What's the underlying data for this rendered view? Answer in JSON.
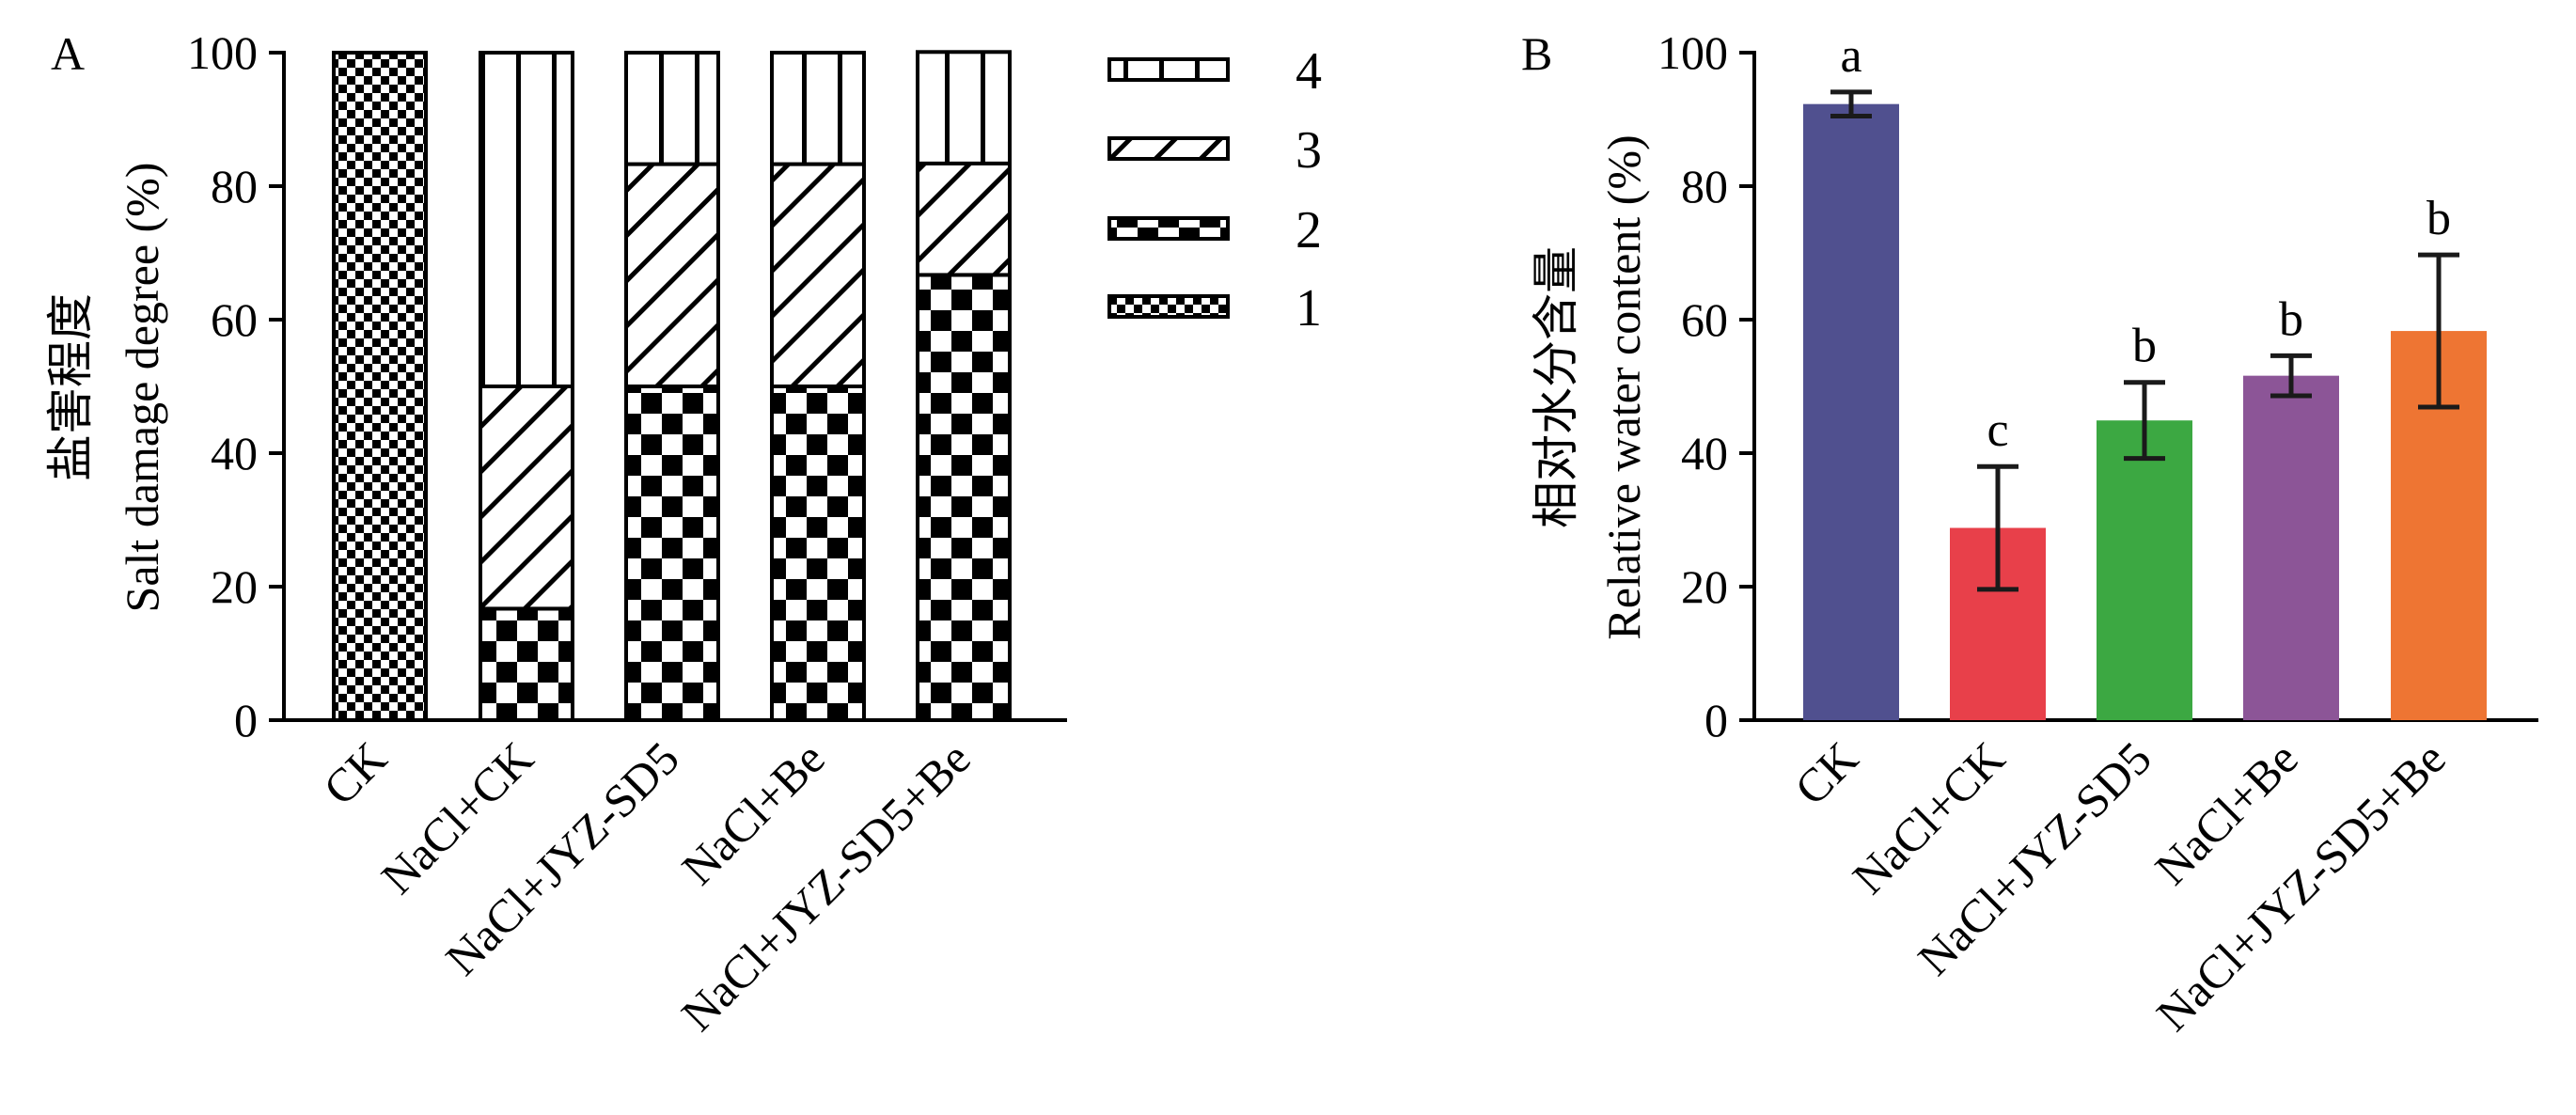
{
  "panels": {
    "a": {
      "letter": "A",
      "ylabel_cn": "盐害程度",
      "ylabel_en": "Salt damage degree (%)"
    },
    "b": {
      "letter": "B",
      "ylabel_cn": "相对水分含量",
      "ylabel_en": "Relative water content (%)"
    }
  },
  "chart_data": [
    {
      "type": "bar",
      "stacked": true,
      "title": "",
      "xlabel": "",
      "ylabel": "盐害程度 Salt damage degree (%)",
      "ylim": [
        0,
        100
      ],
      "yticks": [
        0,
        20,
        40,
        60,
        80,
        100
      ],
      "categories": [
        "CK",
        "NaCl+CK",
        "NaCl+JYZ-SD5",
        "NaCl+Be",
        "NaCl+JYZ-SD5+Be"
      ],
      "series": [
        {
          "name": "1",
          "pattern": "fine-checker",
          "values": [
            100,
            0,
            0,
            0,
            0
          ]
        },
        {
          "name": "2",
          "pattern": "large-checker",
          "values": [
            0,
            16.7,
            50,
            50,
            66.7
          ]
        },
        {
          "name": "3",
          "pattern": "diagonal-hatch",
          "values": [
            0,
            33.3,
            33.3,
            33.3,
            16.7
          ]
        },
        {
          "name": "4",
          "pattern": "vertical-lines",
          "values": [
            0,
            50,
            16.7,
            16.7,
            16.7
          ]
        }
      ],
      "legend_position": "right",
      "legend_order": [
        "4",
        "3",
        "2",
        "1"
      ],
      "grid": false
    },
    {
      "type": "bar",
      "title": "",
      "xlabel": "",
      "ylabel": "相对水分含量 Relative water content (%)",
      "ylim": [
        0,
        100
      ],
      "yticks": [
        0,
        20,
        40,
        60,
        80,
        100
      ],
      "categories": [
        "CK",
        "NaCl+CK",
        "NaCl+JYZ-SD5",
        "NaCl+Be",
        "NaCl+JYZ-SD5+Be"
      ],
      "values": [
        92.3,
        28.8,
        44.9,
        51.6,
        58.3
      ],
      "errors": [
        1.8,
        9.2,
        5.7,
        3.0,
        11.4
      ],
      "significance": [
        "a",
        "c",
        "b",
        "b",
        "b"
      ],
      "colors": [
        "#50508f",
        "#e8404a",
        "#3ca842",
        "#8c5597",
        "#ee7533"
      ],
      "grid": false
    }
  ]
}
